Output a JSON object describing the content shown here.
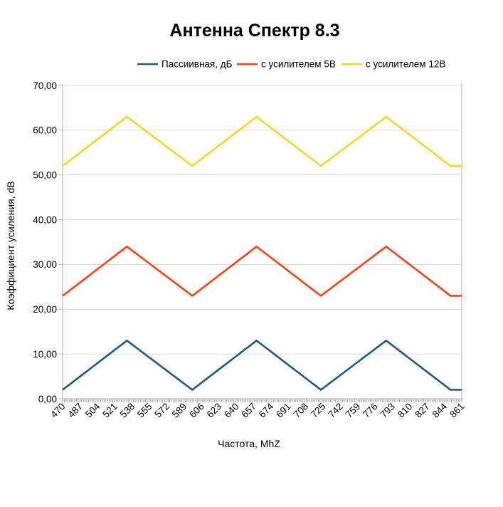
{
  "title": "Антенна Спектр 8.3",
  "colors": {
    "background": "#ffffff",
    "gridline": "#d9d9d9",
    "axis": "#b3b3b3",
    "minor_tick": "#9a9a9a",
    "text": "#000000"
  },
  "chart_data": {
    "type": "line",
    "title": "Антенна Спектр 8.3",
    "xlabel": "Частота, MhZ",
    "ylabel": "Коэффициент усиления, dB",
    "legend_position": "top",
    "grid": "horizontal",
    "xlim": [
      470,
      861
    ],
    "ylim": [
      0,
      70
    ],
    "y_tick_step": 10,
    "y_tick_labels": [
      "0,00",
      "10,00",
      "20,00",
      "30,00",
      "40,00",
      "50,00",
      "60,00",
      "70,00"
    ],
    "x_tick_labels": [
      "470",
      "487",
      "504",
      "521",
      "538",
      "555",
      "572",
      "589",
      "606",
      "623",
      "640",
      "657",
      "674",
      "691",
      "708",
      "725",
      "742",
      "759",
      "776",
      "793",
      "810",
      "827",
      "844",
      "861"
    ],
    "series": [
      {
        "name": "Пассиивная, дБ",
        "color": "#1E5A8C",
        "points": [
          [
            470,
            2
          ],
          [
            533,
            13
          ],
          [
            597,
            2
          ],
          [
            660,
            13
          ],
          [
            723,
            2
          ],
          [
            787,
            13
          ],
          [
            850,
            2
          ],
          [
            861,
            2
          ]
        ]
      },
      {
        "name": "с усилителем 5В",
        "color": "#FF420E",
        "points": [
          [
            470,
            23
          ],
          [
            533,
            34
          ],
          [
            597,
            23
          ],
          [
            660,
            34
          ],
          [
            723,
            23
          ],
          [
            787,
            34
          ],
          [
            850,
            23
          ],
          [
            861,
            23
          ]
        ]
      },
      {
        "name": "с усилителем 12В",
        "color": "#FFD320",
        "points": [
          [
            470,
            52
          ],
          [
            533,
            63
          ],
          [
            597,
            52
          ],
          [
            660,
            63
          ],
          [
            723,
            52
          ],
          [
            787,
            63
          ],
          [
            850,
            52
          ],
          [
            861,
            52
          ]
        ]
      }
    ]
  }
}
